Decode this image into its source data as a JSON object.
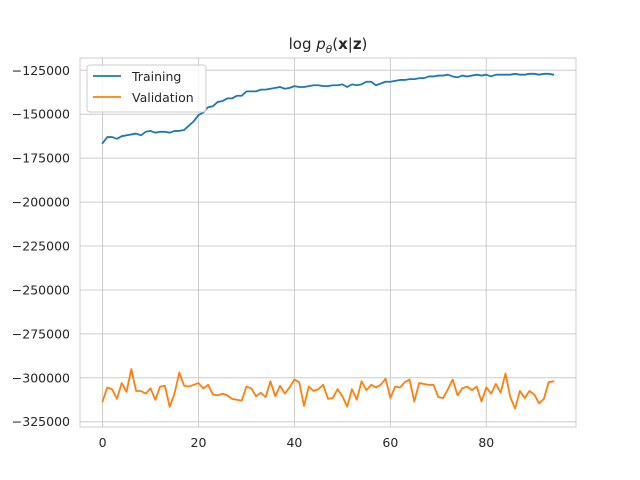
{
  "chart_data": {
    "type": "line",
    "title_parts": {
      "pre": "log ",
      "p": "p",
      "theta": "θ",
      "open": "(",
      "x": "x",
      "bar": "|",
      "z": "z",
      "close": ")"
    },
    "xlabel": "",
    "ylabel": "",
    "xlim": [
      -4.7,
      98.7
    ],
    "ylim": [
      -328000,
      -118000
    ],
    "xticks": [
      0,
      20,
      40,
      60,
      80
    ],
    "xtick_labels": [
      "0",
      "20",
      "40",
      "60",
      "80"
    ],
    "yticks": [
      -125000,
      -150000,
      -175000,
      -200000,
      -225000,
      -250000,
      -275000,
      -300000,
      -325000
    ],
    "ytick_labels": [
      "−125000",
      "−150000",
      "−175000",
      "−200000",
      "−225000",
      "−250000",
      "−275000",
      "−300000",
      "−325000"
    ],
    "grid": true,
    "legend_position": "upper-left",
    "series": [
      {
        "name": "Training",
        "color": "#1f77b4",
        "x": [
          0,
          1,
          2,
          3,
          4,
          5,
          6,
          7,
          8,
          9,
          10,
          11,
          12,
          13,
          14,
          15,
          16,
          17,
          18,
          19,
          20,
          21,
          22,
          23,
          24,
          25,
          26,
          27,
          28,
          29,
          30,
          31,
          32,
          33,
          34,
          35,
          36,
          37,
          38,
          39,
          40,
          41,
          42,
          43,
          44,
          45,
          46,
          47,
          48,
          49,
          50,
          51,
          52,
          53,
          54,
          55,
          56,
          57,
          58,
          59,
          60,
          61,
          62,
          63,
          64,
          65,
          66,
          67,
          68,
          69,
          70,
          71,
          72,
          73,
          74,
          75,
          76,
          77,
          78,
          79,
          80,
          81,
          82,
          83,
          84,
          85,
          86,
          87,
          88,
          89,
          90,
          91,
          92,
          93,
          94
        ],
        "values": [
          -166500,
          -163000,
          -163000,
          -164000,
          -162500,
          -162000,
          -161500,
          -161000,
          -162000,
          -160000,
          -159500,
          -160500,
          -160000,
          -160000,
          -160500,
          -159500,
          -159500,
          -159000,
          -156500,
          -154000,
          -150500,
          -149000,
          -146000,
          -145500,
          -143000,
          -142500,
          -141000,
          -141000,
          -139500,
          -139500,
          -137000,
          -137000,
          -137000,
          -136000,
          -136000,
          -135500,
          -135000,
          -134500,
          -135500,
          -135000,
          -134000,
          -134500,
          -134500,
          -134000,
          -133500,
          -133500,
          -134000,
          -134000,
          -133500,
          -133500,
          -133000,
          -134500,
          -133000,
          -133500,
          -133000,
          -131500,
          -131500,
          -133500,
          -132500,
          -131500,
          -131500,
          -131000,
          -130500,
          -130500,
          -130000,
          -130000,
          -129500,
          -129500,
          -128500,
          -128500,
          -128000,
          -128000,
          -127500,
          -128500,
          -129000,
          -128000,
          -128500,
          -128000,
          -127500,
          -128000,
          -127500,
          -128500,
          -127500,
          -127500,
          -127500,
          -127500,
          -127000,
          -127500,
          -127500,
          -127000,
          -127000,
          -127500,
          -127000,
          -127000,
          -127500
        ]
      },
      {
        "name": "Validation",
        "color": "#ff7f0e",
        "x": [
          0,
          1,
          2,
          3,
          4,
          5,
          6,
          7,
          8,
          9,
          10,
          11,
          12,
          13,
          14,
          15,
          16,
          17,
          18,
          19,
          20,
          21,
          22,
          23,
          24,
          25,
          26,
          27,
          28,
          29,
          30,
          31,
          32,
          33,
          34,
          35,
          36,
          37,
          38,
          39,
          40,
          41,
          42,
          43,
          44,
          45,
          46,
          47,
          48,
          49,
          50,
          51,
          52,
          53,
          54,
          55,
          56,
          57,
          58,
          59,
          60,
          61,
          62,
          63,
          64,
          65,
          66,
          67,
          68,
          69,
          70,
          71,
          72,
          73,
          74,
          75,
          76,
          77,
          78,
          79,
          80,
          81,
          82,
          83,
          84,
          85,
          86,
          87,
          88,
          89,
          90,
          91,
          92,
          93,
          94
        ],
        "values": [
          -313500,
          -305500,
          -306500,
          -312000,
          -303000,
          -308000,
          -295000,
          -307500,
          -307500,
          -309000,
          -306000,
          -312500,
          -305000,
          -304500,
          -316500,
          -309000,
          -297000,
          -304500,
          -305000,
          -304000,
          -303000,
          -306000,
          -304000,
          -309500,
          -310000,
          -309000,
          -310000,
          -312000,
          -312500,
          -313000,
          -305000,
          -306000,
          -310500,
          -308500,
          -311000,
          -302000,
          -310500,
          -304500,
          -309000,
          -305500,
          -301000,
          -302500,
          -316000,
          -305000,
          -307500,
          -306500,
          -304000,
          -312000,
          -311500,
          -306500,
          -310500,
          -316500,
          -306500,
          -312500,
          -302000,
          -307000,
          -304000,
          -305500,
          -304000,
          -300500,
          -311500,
          -305000,
          -305500,
          -302500,
          -301000,
          -313500,
          -303000,
          -303500,
          -304000,
          -304000,
          -311000,
          -311500,
          -306500,
          -301000,
          -310000,
          -306000,
          -305000,
          -307000,
          -305000,
          -313500,
          -305500,
          -309000,
          -303500,
          -308500,
          -297500,
          -311000,
          -317500,
          -307500,
          -311500,
          -307500,
          -309500,
          -314500,
          -312000,
          -302500,
          -302000
        ]
      }
    ]
  }
}
